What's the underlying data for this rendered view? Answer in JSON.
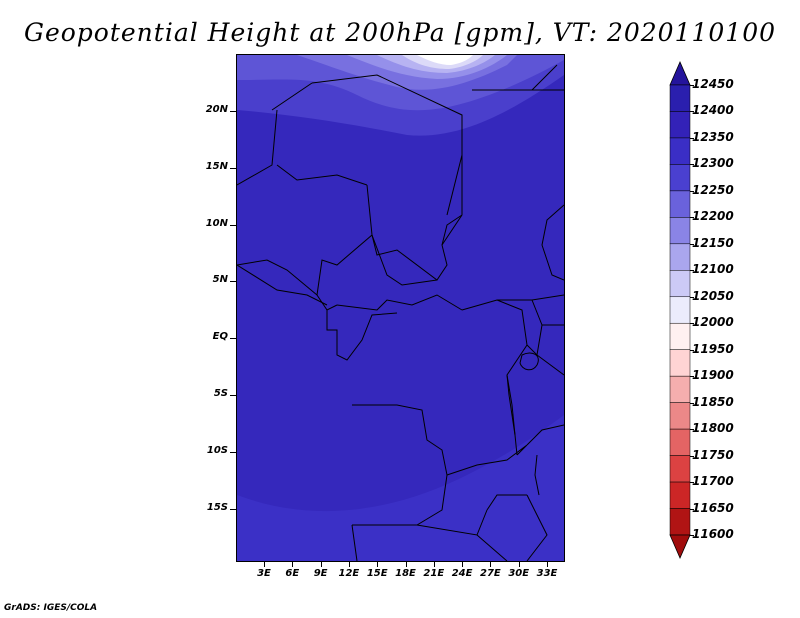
{
  "title": "Geopotential Height at 200hPa [gpm], VT: 2020110100",
  "lat_labels": [
    "20N",
    "15N",
    "10N",
    "5N",
    "EQ",
    "5S",
    "10S",
    "15S"
  ],
  "lon_labels": [
    "3E",
    "6E",
    "9E",
    "12E",
    "15E",
    "18E",
    "21E",
    "24E",
    "27E",
    "30E",
    "33E"
  ],
  "colorbar": {
    "labels": [
      "12450",
      "12400",
      "12350",
      "12300",
      "12250",
      "12200",
      "12150",
      "12100",
      "12050",
      "12000",
      "11950",
      "11900",
      "11850",
      "11800",
      "11750",
      "11700",
      "11650",
      "11600"
    ],
    "colors": [
      "#24149c",
      "#2a1fae",
      "#3322b8",
      "#3a2ec6",
      "#4a40d0",
      "#6a62dc",
      "#8a84e6",
      "#aaa6ee",
      "#cccaf6",
      "#ececfc",
      "#fff0f0",
      "#ffd4d4",
      "#f5aeae",
      "#ec8888",
      "#e46464",
      "#dc4242",
      "#cc2626",
      "#b01414",
      "#a00c0c"
    ]
  },
  "map_fill_colors": {
    "main": "#3528bc",
    "south": "#3b30c6",
    "band1": "#4a3fcc",
    "band2": "#5e55d6",
    "band3": "#7870e0",
    "band4": "#9590ea",
    "band5": "#b7b3f2",
    "band6": "#dcdaf8",
    "peak": "#ffffff",
    "boundary": "#000000"
  },
  "footer": "GrADS: IGES/COLA"
}
